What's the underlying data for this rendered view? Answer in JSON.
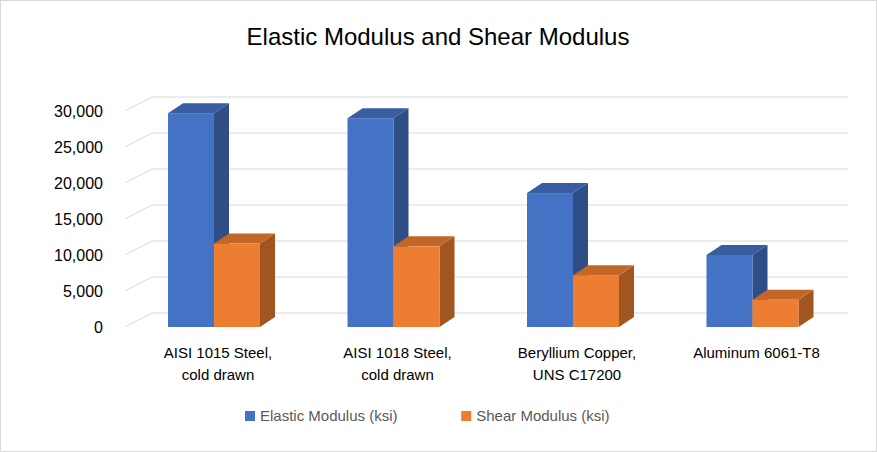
{
  "chart_data": {
    "type": "bar",
    "title": "Elastic Modulus and Shear Modulus",
    "categories": [
      "AISI 1015 Steel, cold drawn",
      "AISI 1018 Steel, cold drawn",
      "Beryllium Copper, UNS C17200",
      "Aluminum 6061-T8"
    ],
    "series": [
      {
        "name": "Elastic Modulus (ksi)",
        "color": "#4472c4",
        "values": [
          29700,
          29000,
          18600,
          10000
        ]
      },
      {
        "name": "Shear Modulus (ksi)",
        "color": "#ed7d31",
        "values": [
          11600,
          11200,
          7200,
          3800
        ]
      }
    ],
    "ylim": [
      0,
      30000
    ],
    "yticks": [
      0,
      {
        "value": 5000,
        "label": "5,000"
      },
      {
        "value": 10000,
        "label": "10,000"
      },
      {
        "value": 15000,
        "label": "15,000"
      },
      {
        "value": 20000,
        "label": "20,000"
      },
      {
        "value": 25000,
        "label": "25,000"
      },
      {
        "value": 30000,
        "label": "30,000"
      }
    ],
    "grid": true,
    "legend": "bottom"
  }
}
